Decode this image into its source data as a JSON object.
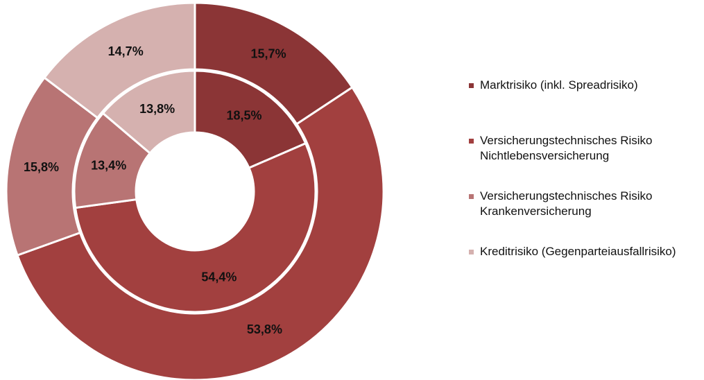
{
  "chart_data": {
    "type": "donut",
    "categories": [
      "Marktrisiko (inkl. Spreadrisiko)",
      "Versicherungstechnisches Risiko Nichtlebensversicherung",
      "Versicherungstechnisches Risiko Krankenversicherung",
      "Kreditrisiko (Gegenparteiausfallrisiko)"
    ],
    "colors": [
      "#8b3536",
      "#a2403f",
      "#b87474",
      "#d5b1af"
    ],
    "series": [
      {
        "values": [
          15.7,
          53.8,
          15.8,
          14.7
        ],
        "value_labels": [
          "15,7%",
          "53,8%",
          "15,8%",
          "14,7%"
        ]
      },
      {
        "values": [
          18.5,
          54.4,
          13.4,
          13.8
        ],
        "value_labels": [
          "18,5%",
          "54,4%",
          "13,4%",
          "13,8%"
        ]
      }
    ]
  }
}
